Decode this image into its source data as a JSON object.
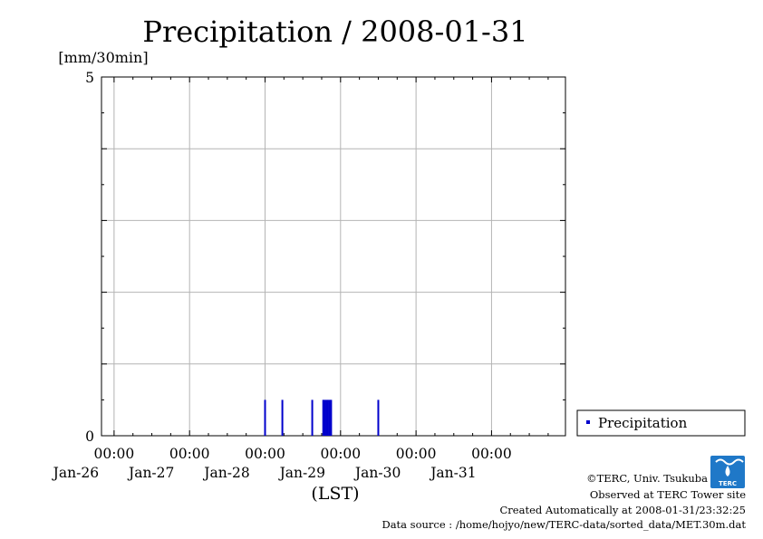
{
  "chart_data": {
    "type": "bar",
    "title": "Precipitation / 2008-01-31",
    "ylabel": "[mm/30min]",
    "xlabel": "(LST)",
    "ylim": [
      0,
      5
    ],
    "y_ticks": [
      "0",
      "5"
    ],
    "x_range": [
      "2008-01-25T20:00",
      "2008-01-31T23:30"
    ],
    "x_ticks": [
      {
        "time": "00:00",
        "date": "Jan-26",
        "at": "2008-01-26T00:00"
      },
      {
        "time": "00:00",
        "date": "Jan-27",
        "at": "2008-01-27T00:00"
      },
      {
        "time": "00:00",
        "date": "Jan-28",
        "at": "2008-01-28T00:00"
      },
      {
        "time": "00:00",
        "date": "Jan-29",
        "at": "2008-01-29T00:00"
      },
      {
        "time": "00:00",
        "date": "Jan-30",
        "at": "2008-01-30T00:00"
      },
      {
        "time": "00:00",
        "date": "Jan-31",
        "at": "2008-01-31T00:00"
      }
    ],
    "grid": true,
    "legend_position": "bottom-right",
    "series": [
      {
        "name": "Precipitation",
        "color": "#0000cc",
        "points": [
          {
            "x": "2008-01-28T00:00",
            "y": 0.5
          },
          {
            "x": "2008-01-28T05:30",
            "y": 0.5
          },
          {
            "x": "2008-01-28T15:00",
            "y": 0.5
          },
          {
            "x": "2008-01-28T18:30",
            "y": 0.5
          },
          {
            "x": "2008-01-28T19:00",
            "y": 0.5
          },
          {
            "x": "2008-01-28T19:30",
            "y": 0.5
          },
          {
            "x": "2008-01-28T20:00",
            "y": 0.5
          },
          {
            "x": "2008-01-28T20:30",
            "y": 0.5
          },
          {
            "x": "2008-01-28T21:00",
            "y": 0.5
          },
          {
            "x": "2008-01-29T12:00",
            "y": 0.5
          }
        ]
      }
    ]
  },
  "footer": {
    "copyright": "©TERC, Univ. Tsukuba",
    "observed": "Observed at TERC Tower site",
    "created": "Created Automatically at 2008-01-31/23:32:25",
    "source": "Data source : /home/hojyo/new/TERC-data/sorted_data/MET.30m.dat",
    "logo_text": "TERC"
  }
}
